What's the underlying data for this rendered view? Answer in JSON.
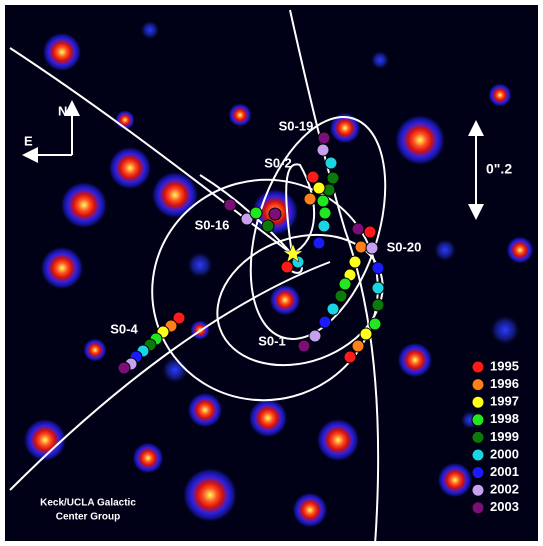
{
  "compass": {
    "north": "N",
    "east": "E"
  },
  "scale_label": "0\".2",
  "stars": [
    "S0-19",
    "S0-2",
    "S0-16",
    "S0-20",
    "S0-4",
    "S0-1"
  ],
  "legend": [
    {
      "label": "1995",
      "color": "#ff1a1a"
    },
    {
      "label": "1996",
      "color": "#ff7f1a"
    },
    {
      "label": "1997",
      "color": "#ffff1a"
    },
    {
      "label": "1998",
      "color": "#22e622"
    },
    {
      "label": "1999",
      "color": "#0b7a0b"
    },
    {
      "label": "2000",
      "color": "#1ad4e6"
    },
    {
      "label": "2001",
      "color": "#1a1aff"
    },
    {
      "label": "2002",
      "color": "#c8a0f0"
    },
    {
      "label": "2003",
      "color": "#7a0f7a"
    }
  ],
  "credit": [
    "Keck/UCLA Galactic",
    "Center Group"
  ]
}
